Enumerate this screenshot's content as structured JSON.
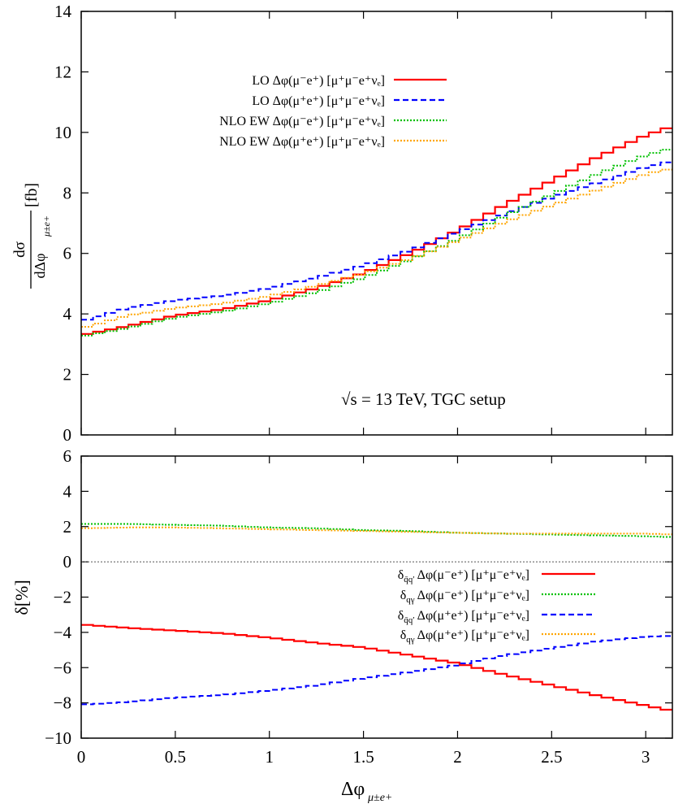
{
  "chart_data": [
    {
      "type": "line",
      "style": "histogram-steps",
      "ylabel": "dσ / dΔφ_{μ±e+} [fb]",
      "ylabel_num": "dσ",
      "ylabel_den": "dΔφ",
      "ylabel_den_sub": "μ±e+",
      "ylabel_unit": "[fb]",
      "xlim": [
        0,
        3.1416
      ],
      "ylim": [
        0,
        14
      ],
      "yticks": [
        "0",
        "2",
        "4",
        "6",
        "8",
        "10",
        "12",
        "14"
      ],
      "legend_position": "top-left",
      "annotation": "√s = 13 TeV, TGC setup",
      "x": [
        0,
        0.25,
        0.5,
        0.75,
        1.0,
        1.25,
        1.5,
        1.75,
        2.0,
        2.25,
        2.5,
        2.75,
        3.0,
        3.14
      ],
      "series": [
        {
          "name": "LO Δφ(μ⁻e⁺) [μ⁺μ⁻e⁺νₑ]",
          "color": "#ff0000",
          "dash": "solid",
          "values": [
            3.3,
            3.6,
            3.95,
            4.15,
            4.45,
            4.85,
            5.35,
            6.0,
            6.75,
            7.6,
            8.4,
            9.2,
            9.9,
            10.2
          ]
        },
        {
          "name": "LO Δφ(μ⁺e⁺) [μ⁺μ⁻e⁺νₑ]",
          "color": "#0000ff",
          "dash": "dashed",
          "values": [
            3.75,
            4.2,
            4.45,
            4.6,
            4.85,
            5.2,
            5.6,
            6.1,
            6.7,
            7.3,
            7.85,
            8.35,
            8.85,
            9.05
          ]
        },
        {
          "name": "NLO EW Δφ(μ⁻e⁺) [μ⁺μ⁻e⁺νₑ]",
          "color": "#00c000",
          "dash": "dotted",
          "values": [
            3.25,
            3.54,
            3.88,
            4.07,
            4.35,
            4.72,
            5.19,
            5.79,
            6.47,
            7.24,
            7.94,
            8.64,
            9.24,
            9.48
          ]
        },
        {
          "name": "NLO EW Δφ(μ⁺e⁺) [μ⁺μ⁻e⁺νₑ]",
          "color": "#ffa500",
          "dash": "dotted",
          "values": [
            3.52,
            3.95,
            4.19,
            4.34,
            4.59,
            4.93,
            5.33,
            5.82,
            6.42,
            7.03,
            7.59,
            8.11,
            8.62,
            8.81
          ]
        }
      ]
    },
    {
      "type": "line",
      "style": "histogram-steps",
      "xlabel": "Δφ_{μ±e+}",
      "xlabel_main": "Δφ",
      "xlabel_sub": "μ±e+",
      "ylabel": "δ[%]",
      "xlim": [
        0,
        3.1416
      ],
      "ylim": [
        -10,
        6
      ],
      "xticks": [
        "0",
        "0.5",
        "1",
        "1.5",
        "2",
        "2.5",
        "3"
      ],
      "yticks": [
        "−10",
        "−8",
        "−6",
        "−4",
        "−2",
        "0",
        "2",
        "4",
        "6"
      ],
      "legend_position": "center-right",
      "x": [
        0,
        0.25,
        0.5,
        0.75,
        1.0,
        1.25,
        1.5,
        1.75,
        2.0,
        2.25,
        2.5,
        2.75,
        3.0,
        3.14
      ],
      "series": [
        {
          "name": "δq̄q′ Δφ(μ⁻e⁺) [μ⁺μ⁻e⁺νₑ]",
          "label_sub": "q̄q′",
          "label_rest": "Δφ(μ⁻e⁺) [μ⁺μ⁻e⁺νₑ]",
          "color": "#ff0000",
          "dash": "solid",
          "values": [
            -3.55,
            -3.75,
            -3.9,
            -4.05,
            -4.3,
            -4.6,
            -4.85,
            -5.3,
            -5.75,
            -6.4,
            -7.0,
            -7.6,
            -8.15,
            -8.45
          ]
        },
        {
          "name": "δqγ Δφ(μ⁻e⁺) [μ⁺μ⁻e⁺νₑ]",
          "label_sub": "qγ",
          "label_rest": "Δφ(μ⁻e⁺) [μ⁺μ⁻e⁺νₑ]",
          "color": "#00c000",
          "dash": "dotted",
          "values": [
            2.15,
            2.15,
            2.1,
            2.05,
            1.95,
            1.9,
            1.8,
            1.75,
            1.65,
            1.6,
            1.55,
            1.5,
            1.45,
            1.4
          ]
        },
        {
          "name": "δq̄q′ Δφ(μ⁺e⁺) [μ⁺μ⁻e⁺νₑ]",
          "label_sub": "q̄q′",
          "label_rest": "Δφ(μ⁺e⁺) [μ⁺μ⁻e⁺νₑ]",
          "color": "#0000ff",
          "dash": "dashed",
          "values": [
            -8.1,
            -7.95,
            -7.7,
            -7.55,
            -7.3,
            -7.0,
            -6.6,
            -6.25,
            -5.85,
            -5.3,
            -4.9,
            -4.5,
            -4.25,
            -4.2
          ]
        },
        {
          "name": "δqγ Δφ(μ⁺e⁺) [μ⁺μ⁻e⁺νₑ]",
          "label_sub": "qγ",
          "label_rest": "Δφ(μ⁺e⁺) [μ⁺μ⁻e⁺νₑ]",
          "color": "#ffa500",
          "dash": "dotted",
          "values": [
            1.9,
            1.95,
            1.95,
            1.9,
            1.85,
            1.8,
            1.75,
            1.7,
            1.65,
            1.6,
            1.6,
            1.6,
            1.6,
            1.55
          ]
        }
      ]
    }
  ]
}
